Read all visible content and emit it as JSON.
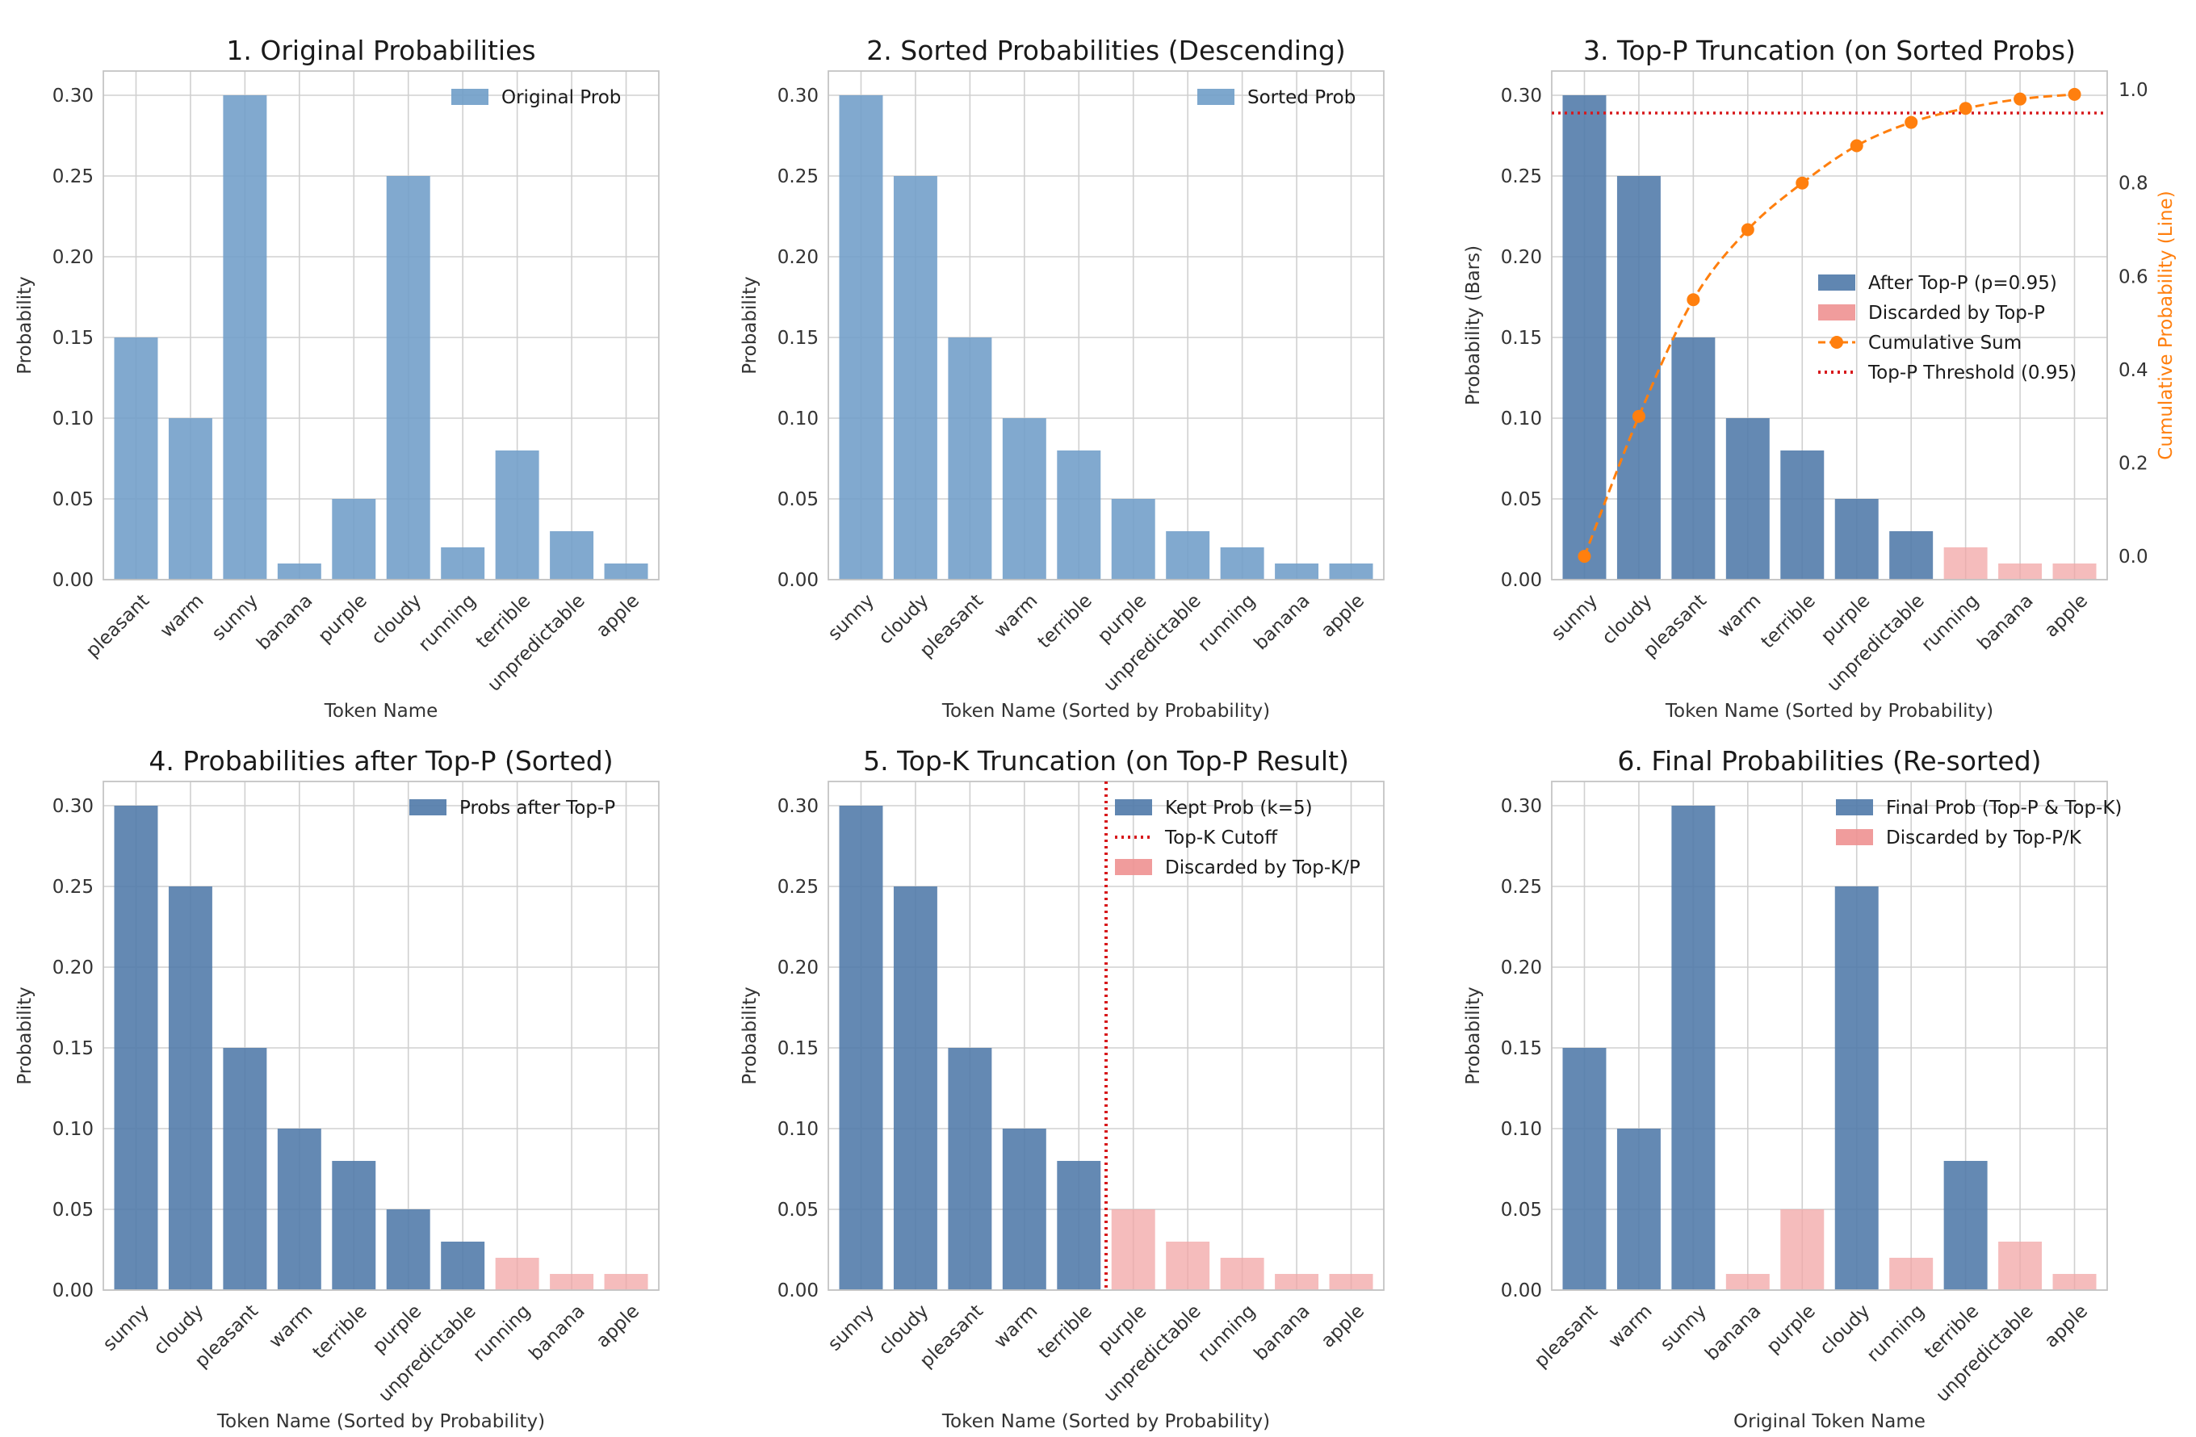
{
  "colors": {
    "kept": "#4f79a8",
    "original": "#6f9dc8",
    "discarded": "#f2a5a5",
    "discarded_legend": "#ee9191",
    "cumulative": "#ff7f0e",
    "threshold": "#d7191c",
    "grid": "#d0d0d0",
    "axis_text": "#333333"
  },
  "chart_data": [
    {
      "id": "original",
      "type": "bar",
      "title": "1. Original Probabilities",
      "xlabel": "Token Name",
      "ylabel": "Probability",
      "ylim": [
        0,
        0.315
      ],
      "yticks": [
        0,
        0.05,
        0.1,
        0.15,
        0.2,
        0.25,
        0.3
      ],
      "ytick_labels": [
        "0.00",
        "0.05",
        "0.10",
        "0.15",
        "0.20",
        "0.25",
        "0.30"
      ],
      "categories": [
        "pleasant",
        "warm",
        "sunny",
        "banana",
        "purple",
        "cloudy",
        "running",
        "terrible",
        "unpredictable",
        "apple"
      ],
      "values": [
        0.15,
        0.1,
        0.3,
        0.01,
        0.05,
        0.25,
        0.02,
        0.08,
        0.03,
        0.01
      ],
      "status": [
        "o",
        "o",
        "o",
        "o",
        "o",
        "o",
        "o",
        "o",
        "o",
        "o"
      ],
      "legend": [
        {
          "type": "bar",
          "color_key": "original",
          "label": "Original Prob"
        }
      ]
    },
    {
      "id": "sorted",
      "type": "bar",
      "title": "2. Sorted Probabilities (Descending)",
      "xlabel": "Token Name (Sorted by Probability)",
      "ylabel": "Probability",
      "ylim": [
        0,
        0.315
      ],
      "yticks": [
        0,
        0.05,
        0.1,
        0.15,
        0.2,
        0.25,
        0.3
      ],
      "ytick_labels": [
        "0.00",
        "0.05",
        "0.10",
        "0.15",
        "0.20",
        "0.25",
        "0.30"
      ],
      "categories": [
        "sunny",
        "cloudy",
        "pleasant",
        "warm",
        "terrible",
        "purple",
        "unpredictable",
        "running",
        "banana",
        "apple"
      ],
      "values": [
        0.3,
        0.25,
        0.15,
        0.1,
        0.08,
        0.05,
        0.03,
        0.02,
        0.01,
        0.01
      ],
      "status": [
        "o",
        "o",
        "o",
        "o",
        "o",
        "o",
        "o",
        "o",
        "o",
        "o"
      ],
      "legend": [
        {
          "type": "bar",
          "color_key": "original",
          "label": "Sorted Prob"
        }
      ]
    },
    {
      "id": "topp",
      "type": "bar",
      "title": "3. Top-P Truncation (on Sorted Probs)",
      "xlabel": "Token Name (Sorted by Probability)",
      "ylabel": "Probability (Bars)",
      "y2label": "Cumulative Probability (Line)",
      "ylim": [
        0,
        0.315
      ],
      "yticks": [
        0,
        0.05,
        0.1,
        0.15,
        0.2,
        0.25,
        0.3
      ],
      "ytick_labels": [
        "0.00",
        "0.05",
        "0.10",
        "0.15",
        "0.20",
        "0.25",
        "0.30"
      ],
      "y2lim": [
        -0.05,
        1.04
      ],
      "y2ticks": [
        0,
        0.2,
        0.4,
        0.6,
        0.8,
        1.0
      ],
      "y2tick_labels": [
        "0.0",
        "0.2",
        "0.4",
        "0.6",
        "0.8",
        "1.0"
      ],
      "categories": [
        "sunny",
        "cloudy",
        "pleasant",
        "warm",
        "terrible",
        "purple",
        "unpredictable",
        "running",
        "banana",
        "apple"
      ],
      "values": [
        0.3,
        0.25,
        0.15,
        0.1,
        0.08,
        0.05,
        0.03,
        0.02,
        0.01,
        0.01
      ],
      "status": [
        "k",
        "k",
        "k",
        "k",
        "k",
        "k",
        "k",
        "d",
        "d",
        "d"
      ],
      "cumulative": [
        0.0,
        0.3,
        0.55,
        0.7,
        0.8,
        0.88,
        0.93,
        0.96,
        0.98,
        0.99
      ],
      "threshold": 0.95,
      "legend_position": "center-right",
      "legend": [
        {
          "type": "bar",
          "color_key": "kept",
          "label": "After Top-P (p=0.95)"
        },
        {
          "type": "bar",
          "color_key": "discarded_legend",
          "label": "Discarded by Top-P"
        },
        {
          "type": "line-marker",
          "color_key": "cumulative",
          "label": "Cumulative Sum"
        },
        {
          "type": "dotted",
          "color_key": "threshold",
          "label": "Top-P Threshold (0.95)"
        }
      ]
    },
    {
      "id": "after-topp",
      "type": "bar",
      "title": "4. Probabilities after Top-P (Sorted)",
      "xlabel": "Token Name (Sorted by Probability)",
      "ylabel": "Probability",
      "ylim": [
        0,
        0.315
      ],
      "yticks": [
        0,
        0.05,
        0.1,
        0.15,
        0.2,
        0.25,
        0.3
      ],
      "ytick_labels": [
        "0.00",
        "0.05",
        "0.10",
        "0.15",
        "0.20",
        "0.25",
        "0.30"
      ],
      "categories": [
        "sunny",
        "cloudy",
        "pleasant",
        "warm",
        "terrible",
        "purple",
        "unpredictable",
        "running",
        "banana",
        "apple"
      ],
      "values": [
        0.3,
        0.25,
        0.15,
        0.1,
        0.08,
        0.05,
        0.03,
        0.02,
        0.01,
        0.01
      ],
      "status": [
        "k",
        "k",
        "k",
        "k",
        "k",
        "k",
        "k",
        "d",
        "d",
        "d"
      ],
      "legend": [
        {
          "type": "bar",
          "color_key": "kept",
          "label": "Probs after Top-P"
        }
      ]
    },
    {
      "id": "topk",
      "type": "bar",
      "title": "5. Top-K Truncation (on Top-P Result)",
      "xlabel": "Token Name (Sorted by Probability)",
      "ylabel": "Probability",
      "ylim": [
        0,
        0.315
      ],
      "yticks": [
        0,
        0.05,
        0.1,
        0.15,
        0.2,
        0.25,
        0.3
      ],
      "ytick_labels": [
        "0.00",
        "0.05",
        "0.10",
        "0.15",
        "0.20",
        "0.25",
        "0.30"
      ],
      "categories": [
        "sunny",
        "cloudy",
        "pleasant",
        "warm",
        "terrible",
        "purple",
        "unpredictable",
        "running",
        "banana",
        "apple"
      ],
      "values": [
        0.3,
        0.25,
        0.15,
        0.1,
        0.08,
        0.05,
        0.03,
        0.02,
        0.01,
        0.01
      ],
      "status": [
        "k",
        "k",
        "k",
        "k",
        "k",
        "d",
        "d",
        "d",
        "d",
        "d"
      ],
      "k": 5,
      "cutoff_x": 4.5,
      "legend": [
        {
          "type": "bar",
          "color_key": "kept",
          "label": "Kept Prob (k=5)"
        },
        {
          "type": "dotted",
          "color_key": "threshold",
          "label": "Top-K Cutoff"
        },
        {
          "type": "bar",
          "color_key": "discarded_legend",
          "label": "Discarded by Top-K/P"
        }
      ]
    },
    {
      "id": "final",
      "type": "bar",
      "title": "6. Final Probabilities (Re-sorted)",
      "xlabel": "Original Token Name",
      "ylabel": "Probability",
      "ylim": [
        0,
        0.315
      ],
      "yticks": [
        0,
        0.05,
        0.1,
        0.15,
        0.2,
        0.25,
        0.3
      ],
      "ytick_labels": [
        "0.00",
        "0.05",
        "0.10",
        "0.15",
        "0.20",
        "0.25",
        "0.30"
      ],
      "categories": [
        "pleasant",
        "warm",
        "sunny",
        "banana",
        "purple",
        "cloudy",
        "running",
        "terrible",
        "unpredictable",
        "apple"
      ],
      "values": [
        0.15,
        0.1,
        0.3,
        0.01,
        0.05,
        0.25,
        0.02,
        0.08,
        0.03,
        0.01
      ],
      "status": [
        "k",
        "k",
        "k",
        "d",
        "d",
        "k",
        "d",
        "k",
        "d",
        "d"
      ],
      "legend": [
        {
          "type": "bar",
          "color_key": "kept",
          "label": "Final Prob (Top-P & Top-K)"
        },
        {
          "type": "bar",
          "color_key": "discarded_legend",
          "label": "Discarded by Top-P/K"
        }
      ]
    }
  ]
}
